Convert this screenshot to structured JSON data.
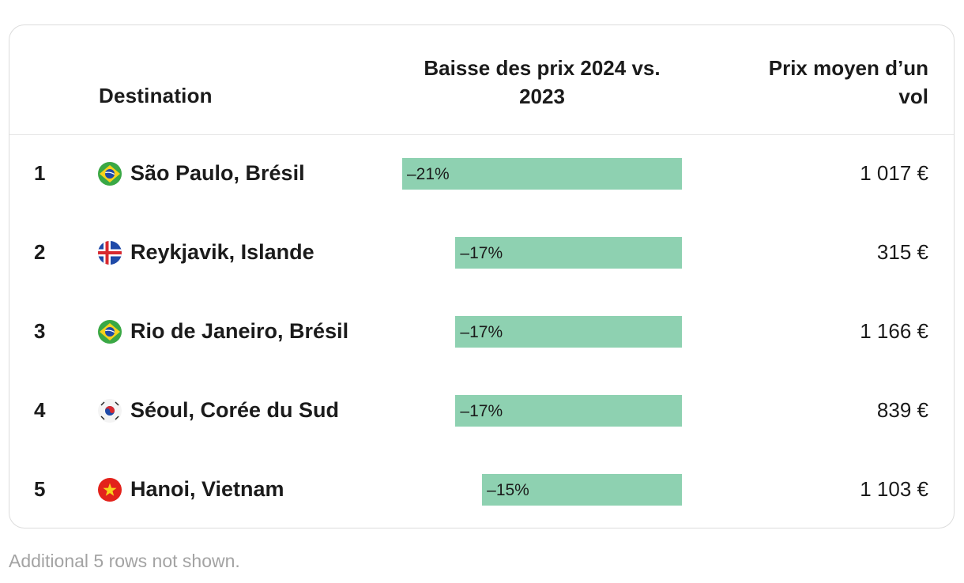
{
  "chart_data": {
    "type": "table",
    "columns": [
      "",
      "Destination",
      "Baisse des prix 2024 vs. 2023",
      "Prix moyen d’un vol"
    ],
    "header": {
      "destination": "Destination",
      "drop_line1": "Baisse des prix 2024 vs.",
      "drop_line2": "2023",
      "price_line1": "Prix moyen d’un",
      "price_line2": "vol"
    },
    "rows": [
      {
        "rank": "1",
        "flag": "brazil-flag",
        "destination": "São Paulo, Brésil",
        "drop": -21,
        "drop_label": "–21%",
        "price": "1 017 €"
      },
      {
        "rank": "2",
        "flag": "iceland-flag",
        "destination": "Reykjavik, Islande",
        "drop": -17,
        "drop_label": "–17%",
        "price": "315 €"
      },
      {
        "rank": "3",
        "flag": "brazil-flag",
        "destination": "Rio de Janeiro, Brésil",
        "drop": -17,
        "drop_label": "–17%",
        "price": "1 166 €"
      },
      {
        "rank": "4",
        "flag": "south-korea-flag",
        "destination": "Séoul, Corée du Sud",
        "drop": -17,
        "drop_label": "–17%",
        "price": "839 €"
      },
      {
        "rank": "5",
        "flag": "vietnam-flag",
        "destination": "Hanoi, Vietnam",
        "drop": -15,
        "drop_label": "–15%",
        "price": "1 103 €"
      }
    ],
    "bar_color": "#8ed1b1",
    "bar_max_abs": 21
  },
  "footnote": "Additional 5 rows not shown."
}
